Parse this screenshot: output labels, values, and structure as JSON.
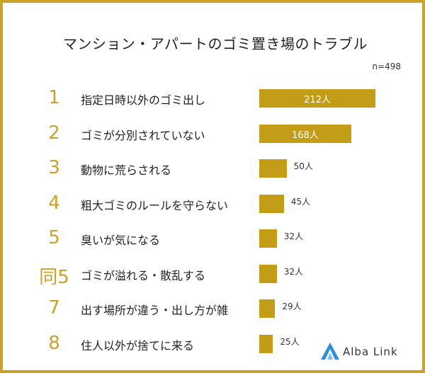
{
  "chart_data": {
    "type": "bar",
    "title": "マンション・アパートのゴミ置き場のトラブル",
    "note": "n=498",
    "ranks": [
      "1",
      "2",
      "3",
      "4",
      "5",
      "同5",
      "7",
      "8"
    ],
    "categories": [
      "指定日時以外のゴミ出し",
      "ゴミが分別されていない",
      "動物に荒らされる",
      "粗大ゴミのルールを守らない",
      "臭いが気になる",
      "ゴミが溢れる・散乱する",
      "出す場所が違う・出し方が雑",
      "住人以外が捨てに来る"
    ],
    "values": [
      212,
      168,
      50,
      45,
      32,
      32,
      29,
      25
    ],
    "value_labels": [
      "212人",
      "168人",
      "50人",
      "45人",
      "32人",
      "32人",
      "29人",
      "25人"
    ],
    "bar_color": "#c39d18",
    "rank_color": "#c9a227",
    "border_color": "#c9a227"
  },
  "brand": {
    "name": "Alba Link",
    "logo_color": "#2a8fd8"
  }
}
